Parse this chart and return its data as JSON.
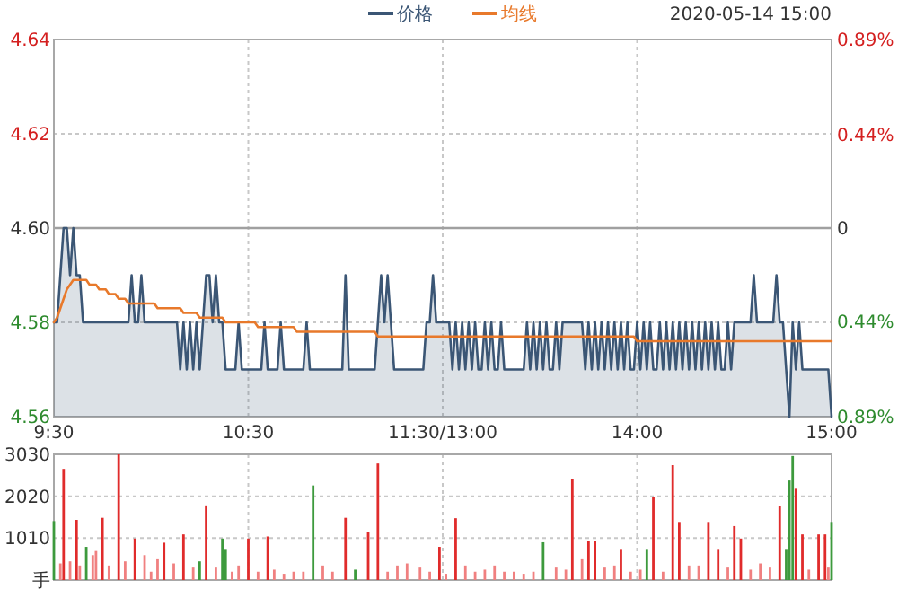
{
  "chart_data": [
    {
      "type": "line",
      "subtitle": "2020-05-14 15:00",
      "legend": "top",
      "grid": true,
      "categories": [
        "9:30",
        null,
        null,
        null,
        null,
        null,
        null,
        null,
        null,
        null,
        null,
        null,
        null,
        null,
        null,
        null,
        null,
        null,
        null,
        null,
        null,
        null,
        null,
        null,
        null,
        null,
        null,
        null,
        null,
        null,
        null,
        null,
        null,
        null,
        null,
        null,
        null,
        null,
        null,
        null,
        null,
        null,
        null,
        null,
        null,
        null,
        null,
        null,
        null,
        null,
        null,
        null,
        null,
        null,
        null,
        null,
        null,
        null,
        null,
        null,
        "10:30",
        null,
        null,
        null,
        null,
        null,
        null,
        null,
        null,
        null,
        null,
        null,
        null,
        null,
        null,
        null,
        null,
        null,
        null,
        null,
        null,
        null,
        null,
        null,
        null,
        null,
        null,
        null,
        null,
        null,
        null,
        null,
        null,
        null,
        null,
        null,
        null,
        null,
        null,
        null,
        null,
        null,
        null,
        null,
        null,
        null,
        null,
        null,
        null,
        null,
        null,
        null,
        null,
        null,
        null,
        null,
        null,
        null,
        null,
        null,
        "11:30/13:00",
        null,
        null,
        null,
        null,
        null,
        null,
        null,
        null,
        null,
        null,
        null,
        null,
        null,
        null,
        null,
        null,
        null,
        null,
        null,
        null,
        null,
        null,
        null,
        null,
        null,
        null,
        null,
        null,
        null,
        null,
        null,
        null,
        null,
        null,
        null,
        null,
        null,
        null,
        null,
        null,
        null,
        null,
        null,
        null,
        null,
        null,
        null,
        null,
        null,
        null,
        null,
        null,
        null,
        null,
        null,
        null,
        null,
        null,
        null,
        "14:00",
        null,
        null,
        null,
        null,
        null,
        null,
        null,
        null,
        null,
        null,
        null,
        null,
        null,
        null,
        null,
        null,
        null,
        null,
        null,
        null,
        null,
        null,
        null,
        null,
        null,
        null,
        null,
        null,
        null,
        null,
        null,
        null,
        null,
        null,
        null,
        null,
        null,
        null,
        null,
        null,
        null,
        null,
        null,
        null,
        null,
        null,
        null,
        null,
        null,
        null,
        null,
        null,
        null,
        null,
        null,
        null,
        null,
        null,
        null,
        "15:00"
      ],
      "ylim": [
        4.56,
        4.64
      ],
      "yticks": [
        4.56,
        4.58,
        {
          "value": 4.6,
          "label": "4.60"
        },
        4.62,
        4.64
      ],
      "y2lim": [
        -0.89,
        0.89
      ],
      "y2ticks": [
        {
          "value": -0.89,
          "label": "0.89%"
        },
        {
          "value": -0.44,
          "label": "0.44%"
        },
        0,
        {
          "value": 0.44,
          "label": "0.44%"
        },
        {
          "value": 0.89,
          "label": "0.89%"
        }
      ],
      "ref_lines": [
        {
          "axis": "y",
          "value": 4.6,
          "color": "#a0a0a0"
        }
      ],
      "series": [
        {
          "name": "价格",
          "type": "area",
          "color": "#3b5675",
          "values": [
            4.58,
            4.58,
            4.59,
            4.6,
            4.6,
            4.59,
            4.6,
            4.59,
            4.59,
            4.58,
            4.58,
            4.58,
            4.58,
            4.58,
            4.58,
            4.58,
            4.58,
            4.58,
            4.58,
            4.58,
            4.58,
            4.58,
            4.58,
            4.58,
            4.59,
            4.58,
            4.58,
            4.59,
            4.58,
            4.58,
            4.58,
            4.58,
            4.58,
            4.58,
            4.58,
            4.58,
            4.58,
            4.58,
            4.58,
            4.57,
            4.58,
            4.57,
            4.58,
            4.57,
            4.58,
            4.57,
            4.58,
            4.59,
            4.59,
            4.58,
            4.59,
            4.58,
            4.58,
            4.57,
            4.57,
            4.57,
            4.57,
            4.58,
            4.57,
            4.57,
            4.57,
            4.57,
            4.57,
            4.57,
            4.57,
            4.58,
            4.57,
            4.57,
            4.57,
            4.57,
            4.58,
            4.57,
            4.57,
            4.57,
            4.57,
            4.57,
            4.57,
            4.57,
            4.58,
            4.57,
            4.57,
            4.57,
            4.57,
            4.57,
            4.57,
            4.57,
            4.57,
            4.57,
            4.57,
            4.57,
            4.59,
            4.57,
            4.57,
            4.57,
            4.57,
            4.57,
            4.57,
            4.57,
            4.57,
            4.57,
            4.58,
            4.59,
            4.58,
            4.59,
            4.58,
            4.57,
            4.57,
            4.57,
            4.57,
            4.57,
            4.57,
            4.57,
            4.57,
            4.57,
            4.57,
            4.58,
            4.58,
            4.59,
            4.58,
            4.58,
            4.58,
            4.58,
            4.58,
            4.57,
            4.58,
            4.57,
            4.58,
            4.57,
            4.58,
            4.57,
            4.58,
            4.57,
            4.57,
            4.58,
            4.57,
            4.58,
            4.57,
            4.57,
            4.58,
            4.57,
            4.57,
            4.57,
            4.57,
            4.57,
            4.57,
            4.57,
            4.58,
            4.57,
            4.58,
            4.57,
            4.58,
            4.57,
            4.58,
            4.57,
            4.57,
            4.58,
            4.57,
            4.58,
            4.58,
            4.58,
            4.58,
            4.58,
            4.58,
            4.58,
            4.57,
            4.58,
            4.57,
            4.58,
            4.57,
            4.58,
            4.57,
            4.58,
            4.57,
            4.58,
            4.57,
            4.58,
            4.57,
            4.58,
            4.57,
            4.57,
            4.58,
            4.57,
            4.58,
            4.57,
            4.58,
            4.57,
            4.57,
            4.58,
            4.57,
            4.58,
            4.57,
            4.58,
            4.57,
            4.58,
            4.57,
            4.58,
            4.57,
            4.58,
            4.57,
            4.58,
            4.57,
            4.58,
            4.57,
            4.58,
            4.57,
            4.58,
            4.57,
            4.57,
            4.58,
            4.57,
            4.58,
            4.58,
            4.58,
            4.58,
            4.58,
            4.58,
            4.59,
            4.58,
            4.58,
            4.58,
            4.58,
            4.58,
            4.58,
            4.59,
            4.58,
            4.58,
            4.57,
            4.56,
            4.58,
            4.57,
            4.58,
            4.57,
            4.57,
            4.57,
            4.57,
            4.57,
            4.57,
            4.57,
            4.57,
            4.57,
            4.56
          ]
        },
        {
          "name": "均线",
          "color": "#e8792b",
          "values": [
            4.58,
            4.581,
            4.583,
            4.585,
            4.587,
            4.588,
            4.589,
            4.589,
            4.589,
            4.589,
            4.589,
            4.588,
            4.588,
            4.588,
            4.587,
            4.587,
            4.587,
            4.586,
            4.586,
            4.586,
            4.585,
            4.585,
            4.585,
            4.584,
            4.584,
            4.584,
            4.584,
            4.584,
            4.584,
            4.584,
            4.584,
            4.584,
            4.583,
            4.583,
            4.583,
            4.583,
            4.583,
            4.583,
            4.583,
            4.583,
            4.582,
            4.582,
            4.582,
            4.582,
            4.582,
            4.581,
            4.581,
            4.581,
            4.581,
            4.581,
            4.581,
            4.581,
            4.581,
            4.58,
            4.58,
            4.58,
            4.58,
            4.58,
            4.58,
            4.58,
            4.58,
            4.58,
            4.58,
            4.579,
            4.579,
            4.579,
            4.579,
            4.579,
            4.579,
            4.579,
            4.579,
            4.579,
            4.579,
            4.579,
            4.579,
            4.578,
            4.578,
            4.578,
            4.578,
            4.578,
            4.578,
            4.578,
            4.578,
            4.578,
            4.578,
            4.578,
            4.578,
            4.578,
            4.578,
            4.578,
            4.578,
            4.578,
            4.578,
            4.578,
            4.578,
            4.578,
            4.578,
            4.578,
            4.578,
            4.578,
            4.577,
            4.577,
            4.577,
            4.577,
            4.577,
            4.577,
            4.577,
            4.577,
            4.577,
            4.577,
            4.577,
            4.577,
            4.577,
            4.577,
            4.577,
            4.577,
            4.577,
            4.577,
            4.577,
            4.577,
            4.577,
            4.577,
            4.577,
            4.577,
            4.577,
            4.577,
            4.577,
            4.577,
            4.577,
            4.577,
            4.577,
            4.577,
            4.577,
            4.577,
            4.577,
            4.577,
            4.577,
            4.577,
            4.577,
            4.577,
            4.577,
            4.577,
            4.577,
            4.577,
            4.577,
            4.577,
            4.577,
            4.577,
            4.577,
            4.577,
            4.577,
            4.577,
            4.577,
            4.577,
            4.577,
            4.577,
            4.577,
            4.577,
            4.577,
            4.577,
            4.577,
            4.577,
            4.577,
            4.577,
            4.577,
            4.577,
            4.577,
            4.577,
            4.577,
            4.577,
            4.577,
            4.577,
            4.577,
            4.577,
            4.577,
            4.577,
            4.577,
            4.577,
            4.577,
            4.577,
            4.576,
            4.576,
            4.576,
            4.576,
            4.576,
            4.576,
            4.576,
            4.576,
            4.576,
            4.576,
            4.576,
            4.576,
            4.576,
            4.576,
            4.576,
            4.576,
            4.576,
            4.576,
            4.576,
            4.576,
            4.576,
            4.576,
            4.576,
            4.576,
            4.576,
            4.576,
            4.576,
            4.576,
            4.576,
            4.576,
            4.576,
            4.576,
            4.576,
            4.576,
            4.576,
            4.576,
            4.576,
            4.576,
            4.576,
            4.576,
            4.576,
            4.576,
            4.576,
            4.576,
            4.576,
            4.576,
            4.576,
            4.576,
            4.576,
            4.576,
            4.576,
            4.576,
            4.576,
            4.576,
            4.576,
            4.576,
            4.576,
            4.576,
            4.576,
            4.576,
            4.576
          ]
        }
      ]
    },
    {
      "type": "bar",
      "grid": true,
      "tick_labels": "y",
      "categories": [
        null,
        null,
        null,
        null,
        null,
        null,
        null,
        null,
        null,
        null,
        null,
        null,
        null,
        null,
        null,
        null,
        null,
        null,
        null,
        null,
        null,
        null,
        null,
        null,
        null,
        null,
        null,
        null,
        null,
        null,
        null,
        null,
        null,
        null,
        null,
        null,
        null,
        null,
        null,
        null,
        null,
        null,
        null,
        null,
        null,
        null,
        null,
        null,
        null,
        null,
        null,
        null,
        null,
        null,
        null,
        null,
        null,
        null,
        null,
        null,
        null,
        null,
        null,
        null,
        null,
        null,
        null,
        null,
        null,
        null,
        null,
        null,
        null,
        null,
        null,
        null,
        null,
        null,
        null,
        null,
        null,
        null,
        null,
        null,
        null,
        null,
        null,
        null,
        null,
        null,
        null,
        null,
        null,
        null,
        null,
        null,
        null,
        null,
        null,
        null,
        null,
        null,
        null,
        null,
        null,
        null,
        null,
        null,
        null,
        null,
        null,
        null,
        null,
        null,
        null,
        null,
        null,
        null,
        null,
        null,
        null,
        null,
        null,
        null,
        null,
        null,
        null,
        null,
        null,
        null,
        null,
        null,
        null,
        null,
        null,
        null,
        null,
        null,
        null,
        null,
        null,
        null,
        null,
        null,
        null,
        null,
        null,
        null,
        null,
        null,
        null,
        null,
        null,
        null,
        null,
        null,
        null,
        null,
        null,
        null,
        null,
        null,
        null,
        null,
        null,
        null,
        null,
        null,
        null,
        null,
        null,
        null,
        null,
        null,
        null,
        null,
        null,
        null,
        null,
        null,
        null,
        null,
        null,
        null,
        null,
        null,
        null,
        null,
        null,
        null,
        null,
        null,
        null,
        null,
        null,
        null,
        null,
        null,
        null,
        null,
        null,
        null,
        null,
        null,
        null,
        null,
        null,
        null,
        null,
        null,
        null,
        null,
        null,
        null,
        null,
        null,
        null,
        null,
        null,
        null,
        null,
        null,
        null,
        null,
        null,
        null,
        null,
        null,
        null,
        null,
        null,
        null,
        null,
        null,
        null,
        null,
        null,
        null,
        null,
        null,
        null
      ],
      "ylim": [
        0,
        3030
      ],
      "yticks": [
        {
          "value": 0,
          "label": "手"
        },
        1010,
        2020,
        3030
      ],
      "values": [
        1420,
        null,
        400,
        2680,
        null,
        450,
        null,
        1450,
        350,
        null,
        800,
        null,
        600,
        700,
        null,
        1500,
        null,
        350,
        null,
        null,
        3030,
        null,
        450,
        null,
        null,
        1000,
        null,
        null,
        600,
        null,
        200,
        null,
        500,
        null,
        900,
        null,
        null,
        400,
        null,
        null,
        1100,
        null,
        null,
        300,
        null,
        450,
        null,
        1800,
        null,
        null,
        300,
        null,
        1000,
        750,
        null,
        200,
        null,
        350,
        null,
        null,
        1000,
        null,
        null,
        200,
        null,
        null,
        1050,
        null,
        250,
        null,
        null,
        150,
        null,
        null,
        200,
        null,
        null,
        200,
        null,
        null,
        2280,
        null,
        null,
        350,
        null,
        null,
        200,
        null,
        null,
        null,
        1500,
        null,
        null,
        250,
        null,
        null,
        null,
        1150,
        null,
        null,
        2810,
        null,
        null,
        200,
        null,
        null,
        350,
        null,
        null,
        400,
        null,
        null,
        null,
        300,
        null,
        null,
        200,
        null,
        null,
        800,
        null,
        150,
        null,
        null,
        1490,
        null,
        null,
        350,
        null,
        null,
        200,
        null,
        null,
        250,
        null,
        null,
        350,
        null,
        null,
        200,
        null,
        null,
        200,
        null,
        null,
        150,
        null,
        null,
        200,
        null,
        null,
        910,
        null,
        null,
        null,
        300,
        null,
        null,
        250,
        null,
        2440,
        null,
        null,
        500,
        null,
        950,
        null,
        950,
        null,
        null,
        300,
        null,
        null,
        350,
        null,
        750,
        null,
        null,
        200,
        null,
        null,
        250,
        null,
        750,
        null,
        2010,
        null,
        null,
        200,
        null,
        null,
        2770,
        null,
        1400,
        null,
        null,
        350,
        null,
        null,
        350,
        null,
        null,
        1400,
        null,
        null,
        750,
        null,
        null,
        300,
        null,
        1300,
        null,
        1000,
        null,
        null,
        250,
        null,
        null,
        400,
        null,
        null,
        300,
        null,
        null,
        1790,
        null,
        750,
        2400,
        2990,
        2200,
        null,
        1100,
        null,
        250,
        null,
        null,
        1100,
        null,
        1100,
        300,
        1400
      ],
      "colors": [
        "#3d9a3d",
        null,
        "#f08080",
        "#e02b2b",
        null,
        "#f08080",
        null,
        "#e02b2b",
        "#f08080",
        null,
        "#3d9a3d",
        null,
        "#f08080",
        "#f08080",
        null,
        "#e02b2b",
        null,
        "#f08080",
        null,
        null,
        "#e02b2b",
        null,
        "#f08080",
        null,
        null,
        "#e02b2b",
        null,
        null,
        "#f08080",
        null,
        "#f08080",
        null,
        "#f08080",
        null,
        "#e02b2b",
        null,
        null,
        "#f08080",
        null,
        null,
        "#e02b2b",
        null,
        null,
        "#f08080",
        null,
        "#3d9a3d",
        null,
        "#e02b2b",
        null,
        null,
        "#f08080",
        null,
        "#3d9a3d",
        "#3d9a3d",
        null,
        "#f08080",
        null,
        "#f08080",
        null,
        null,
        "#e02b2b",
        null,
        null,
        "#f08080",
        null,
        null,
        "#e02b2b",
        null,
        "#f08080",
        null,
        null,
        "#f08080",
        null,
        null,
        "#f08080",
        null,
        null,
        "#f08080",
        null,
        null,
        "#3d9a3d",
        null,
        null,
        "#f08080",
        null,
        null,
        "#f08080",
        null,
        null,
        null,
        "#e02b2b",
        null,
        null,
        "#3d9a3d",
        null,
        null,
        null,
        "#e02b2b",
        null,
        null,
        "#e02b2b",
        null,
        null,
        "#f08080",
        null,
        null,
        "#f08080",
        null,
        null,
        "#f08080",
        null,
        null,
        null,
        "#f08080",
        null,
        null,
        "#f08080",
        null,
        null,
        "#e02b2b",
        null,
        "#f08080",
        null,
        null,
        "#e02b2b",
        null,
        null,
        "#f08080",
        null,
        null,
        "#f08080",
        null,
        null,
        "#f08080",
        null,
        null,
        "#f08080",
        null,
        null,
        "#f08080",
        null,
        null,
        "#f08080",
        null,
        null,
        "#f08080",
        null,
        null,
        "#f08080",
        null,
        null,
        "#3d9a3d",
        null,
        null,
        null,
        "#f08080",
        null,
        null,
        "#f08080",
        null,
        "#e02b2b",
        null,
        null,
        "#f08080",
        null,
        "#e02b2b",
        null,
        "#e02b2b",
        null,
        null,
        "#f08080",
        null,
        null,
        "#f08080",
        null,
        "#e02b2b",
        null,
        null,
        "#f08080",
        null,
        null,
        "#f08080",
        null,
        "#3d9a3d",
        null,
        "#e02b2b",
        null,
        null,
        "#f08080",
        null,
        null,
        "#e02b2b",
        null,
        "#e02b2b",
        null,
        null,
        "#f08080",
        null,
        null,
        "#f08080",
        null,
        null,
        "#e02b2b",
        null,
        null,
        "#e02b2b",
        null,
        null,
        "#f08080",
        null,
        "#e02b2b",
        null,
        "#e02b2b",
        null,
        null,
        "#f08080",
        null,
        null,
        "#f08080",
        null,
        null,
        "#f08080",
        null,
        null,
        "#e02b2b",
        null,
        "#3d9a3d",
        "#3d9a3d",
        "#3d9a3d",
        "#e02b2b",
        null,
        "#e02b2b",
        null,
        "#f08080",
        null,
        null,
        "#e02b2b",
        null,
        "#e02b2b",
        "#f08080",
        "#3d9a3d"
      ]
    }
  ]
}
